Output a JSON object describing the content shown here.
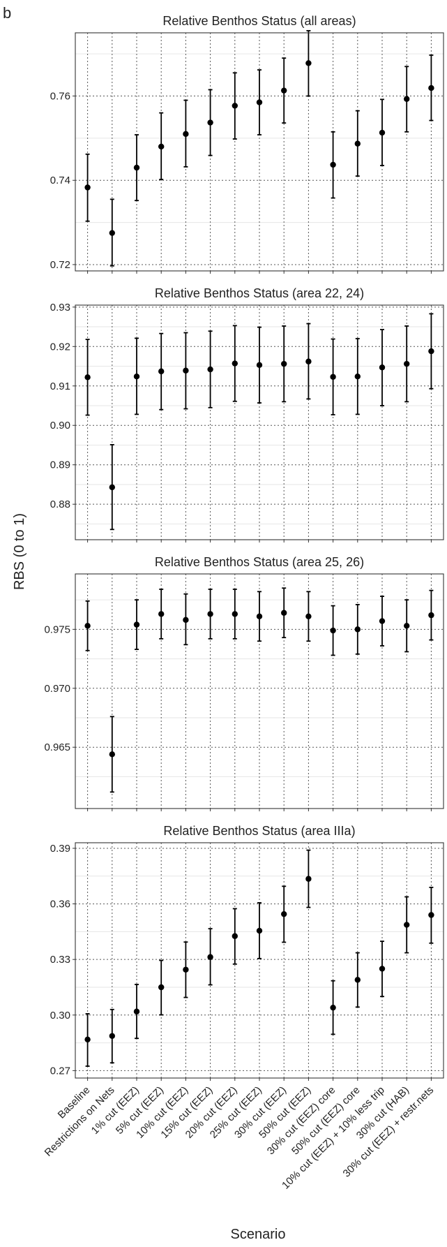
{
  "figure_letter": "b",
  "xlabel": "Scenario",
  "ylabel": "RBS (0 to 1)",
  "chart_data": [
    {
      "type": "scatter",
      "title": "Relative Benthos Status (all areas)",
      "categories": [
        "Baseline",
        "Restrictions on Nets",
        "1% cut (EEZ)",
        "5% cut (EEZ)",
        "10% cut (EEZ)",
        "15% cut (EEZ)",
        "20% cut (EEZ)",
        "25% cut (EEZ)",
        "30% cut (EEZ)",
        "50% cut (EEZ)",
        "30% cut (EEZ) core",
        "50% cut (EEZ) core",
        "10% cut (EEZ) + 10% less trip",
        "30% cut (HAB)",
        "30% cut (EEZ) + restr.nets"
      ],
      "ylim": [
        0.7185,
        0.775
      ],
      "yticks": [
        0.72,
        0.74,
        0.76
      ],
      "ytick_labels": [
        "0.72",
        "0.74",
        "0.76"
      ],
      "grid": true,
      "values": [
        0.7383,
        0.7275,
        0.743,
        0.748,
        0.751,
        0.7537,
        0.7577,
        0.7585,
        0.7613,
        0.7678,
        0.7437,
        0.7487,
        0.7513,
        0.7593,
        0.7619
      ],
      "lower": [
        0.7303,
        0.7197,
        0.7352,
        0.7402,
        0.7432,
        0.7459,
        0.7498,
        0.7508,
        0.7536,
        0.76,
        0.7358,
        0.741,
        0.7435,
        0.7515,
        0.7542
      ],
      "upper": [
        0.7462,
        0.7355,
        0.7508,
        0.756,
        0.759,
        0.7615,
        0.7655,
        0.7662,
        0.769,
        0.7755,
        0.7515,
        0.7565,
        0.7592,
        0.767,
        0.7697
      ]
    },
    {
      "type": "scatter",
      "title": "Relative Benthos Status (area 22, 24)",
      "categories": [
        "Baseline",
        "Restrictions on Nets",
        "1% cut (EEZ)",
        "5% cut (EEZ)",
        "10% cut (EEZ)",
        "15% cut (EEZ)",
        "20% cut (EEZ)",
        "25% cut (EEZ)",
        "30% cut (EEZ)",
        "50% cut (EEZ)",
        "30% cut (EEZ) core",
        "50% cut (EEZ) core",
        "10% cut (EEZ) + 10% less trip",
        "30% cut (HAB)",
        "30% cut (EEZ) + restr.nets"
      ],
      "ylim": [
        0.871,
        0.9305
      ],
      "yticks": [
        0.88,
        0.89,
        0.9,
        0.91,
        0.92,
        0.93
      ],
      "ytick_labels": [
        "0.88",
        "0.89",
        "0.90",
        "0.91",
        "0.92",
        "0.93"
      ],
      "grid": true,
      "values": [
        0.9122,
        0.8843,
        0.9124,
        0.9137,
        0.9139,
        0.9142,
        0.9157,
        0.9153,
        0.9156,
        0.9162,
        0.9123,
        0.9124,
        0.9147,
        0.9156,
        0.9188
      ],
      "lower": [
        0.9026,
        0.8736,
        0.9028,
        0.904,
        0.9042,
        0.9045,
        0.9061,
        0.9057,
        0.906,
        0.9067,
        0.9027,
        0.9028,
        0.905,
        0.906,
        0.9093
      ],
      "upper": [
        0.9218,
        0.8951,
        0.9221,
        0.9233,
        0.9235,
        0.9239,
        0.9253,
        0.9249,
        0.9252,
        0.9258,
        0.9219,
        0.922,
        0.9243,
        0.9252,
        0.9283
      ]
    },
    {
      "type": "scatter",
      "title": "Relative Benthos Status (area 25, 26)",
      "categories": [
        "Baseline",
        "Restrictions on Nets",
        "1% cut (EEZ)",
        "5% cut (EEZ)",
        "10% cut (EEZ)",
        "15% cut (EEZ)",
        "20% cut (EEZ)",
        "25% cut (EEZ)",
        "30% cut (EEZ)",
        "50% cut (EEZ)",
        "30% cut (EEZ) core",
        "50% cut (EEZ) core",
        "10% cut (EEZ) + 10% less trip",
        "30% cut (HAB)",
        "30% cut (EEZ) + restr.nets"
      ],
      "ylim": [
        0.9598,
        0.9797
      ],
      "yticks": [
        0.965,
        0.97,
        0.975
      ],
      "ytick_labels": [
        "0.965",
        "0.970",
        "0.975"
      ],
      "grid": true,
      "values": [
        0.9753,
        0.9644,
        0.9754,
        0.9763,
        0.9758,
        0.9763,
        0.9763,
        0.9761,
        0.9764,
        0.9761,
        0.9749,
        0.975,
        0.9757,
        0.9753,
        0.9762
      ],
      "lower": [
        0.9732,
        0.9612,
        0.9733,
        0.9742,
        0.9737,
        0.9742,
        0.9742,
        0.974,
        0.9743,
        0.974,
        0.9728,
        0.9729,
        0.9736,
        0.9731,
        0.9741
      ],
      "upper": [
        0.9774,
        0.9676,
        0.9775,
        0.9784,
        0.978,
        0.9784,
        0.9784,
        0.9782,
        0.9785,
        0.9782,
        0.977,
        0.9771,
        0.9778,
        0.9775,
        0.9783
      ]
    },
    {
      "type": "scatter",
      "title": "Relative Benthos Status (area IIIa)",
      "categories": [
        "Baseline",
        "Restrictions on Nets",
        "1% cut (EEZ)",
        "5% cut (EEZ)",
        "10% cut (EEZ)",
        "15% cut (EEZ)",
        "20% cut (EEZ)",
        "25% cut (EEZ)",
        "30% cut (EEZ)",
        "50% cut (EEZ)",
        "30% cut (EEZ) core",
        "50% cut (EEZ) core",
        "10% cut (EEZ) + 10% less trip",
        "30% cut (HAB)",
        "30% cut (EEZ) + restr.nets"
      ],
      "ylim": [
        0.266,
        0.393
      ],
      "yticks": [
        0.27,
        0.3,
        0.33,
        0.36,
        0.39
      ],
      "ytick_labels": [
        "0.27",
        "0.30",
        "0.33",
        "0.36",
        "0.39"
      ],
      "grid": true,
      "values": [
        0.2868,
        0.2887,
        0.3019,
        0.315,
        0.3245,
        0.3313,
        0.3426,
        0.3455,
        0.3545,
        0.3735,
        0.304,
        0.319,
        0.325,
        0.3487,
        0.354
      ],
      "lower": [
        0.2724,
        0.2742,
        0.2874,
        0.3001,
        0.3095,
        0.3163,
        0.3275,
        0.3305,
        0.3393,
        0.3581,
        0.2896,
        0.3043,
        0.31,
        0.3336,
        0.3388
      ],
      "upper": [
        0.3007,
        0.303,
        0.3165,
        0.3295,
        0.3394,
        0.3466,
        0.3574,
        0.3606,
        0.3695,
        0.389,
        0.3185,
        0.3336,
        0.3398,
        0.3638,
        0.3689
      ]
    }
  ]
}
